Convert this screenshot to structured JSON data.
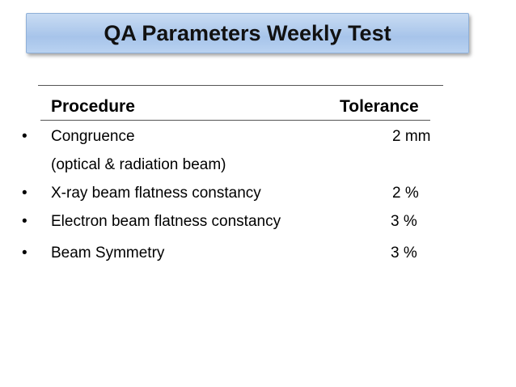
{
  "title": "QA Parameters Weekly Test",
  "table": {
    "header": [
      "Procedure",
      "Tolerance"
    ],
    "rows": [
      {
        "procedure": "Congruence",
        "note": "(optical & radiation beam)",
        "tolerance": "2 mm"
      },
      {
        "procedure": "X-ray beam flatness constancy",
        "tolerance": "2 %"
      },
      {
        "procedure": "Electron beam flatness constancy",
        "tolerance": "3 %"
      },
      {
        "procedure": "Beam Symmetry",
        "tolerance": "3 %"
      }
    ]
  }
}
